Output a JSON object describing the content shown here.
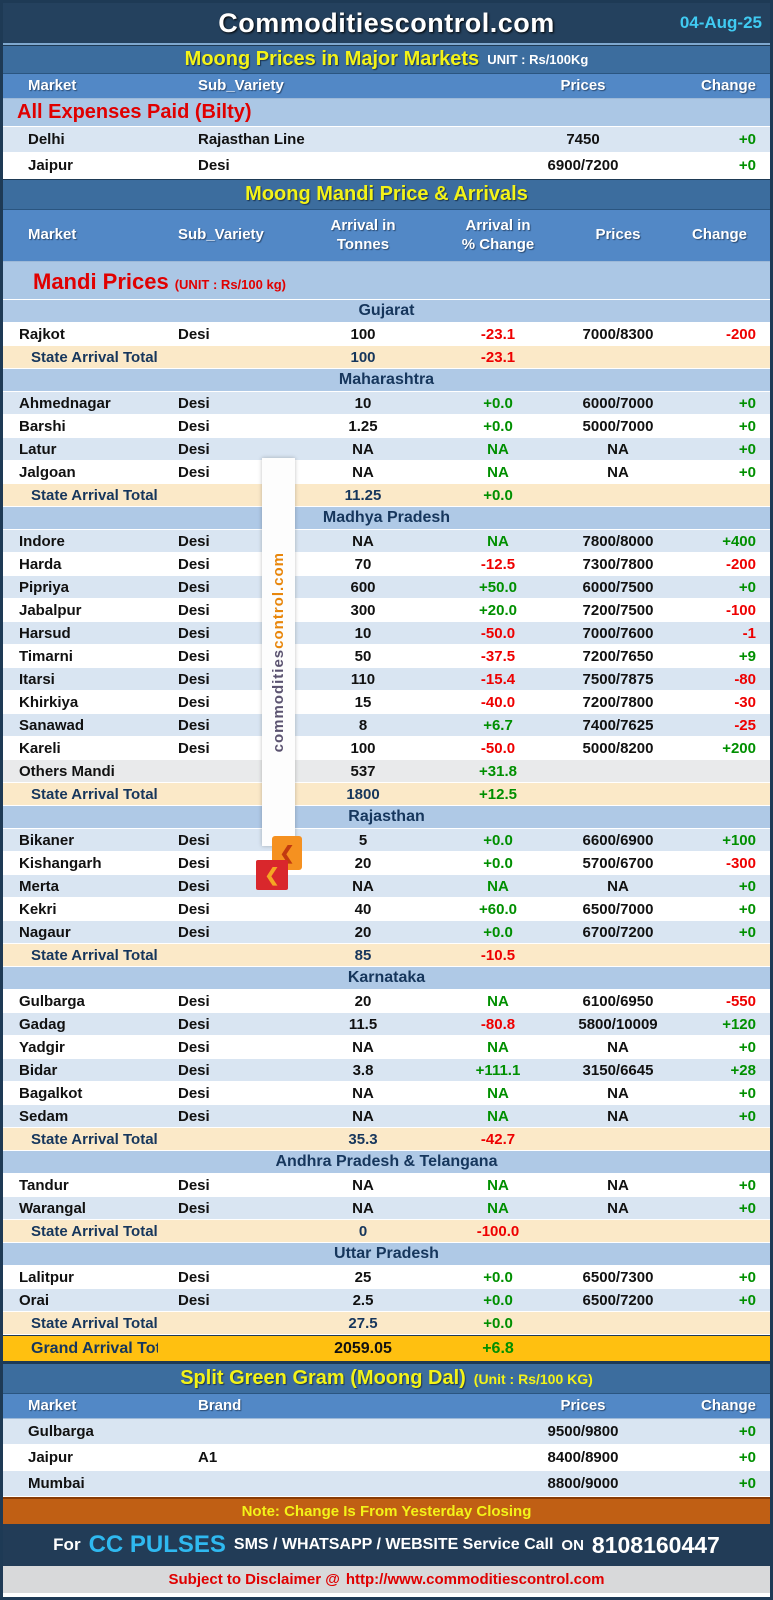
{
  "header": {
    "title": "Commoditiescontrol.com",
    "date": "04-Aug-25"
  },
  "colors": {
    "accent_navy": "#24415E",
    "band_blue": "#3C6D9E",
    "header_blue": "#5288C6",
    "subheader_blue": "#ABC7E5",
    "row_blue": "#D9E5F2",
    "total_cream": "#FBE9C8",
    "grand_gold": "#FFC010",
    "note_brown": "#C05F14",
    "positive_green": "#008F00",
    "negative_red": "#EE0000",
    "date_cyan": "#40CBF2",
    "cc_cyan": "#2FB9F0"
  },
  "major_markets": {
    "title": "Moong Prices in Major Markets",
    "unit": "UNIT : Rs/100Kg",
    "columns": [
      "Market",
      "Sub_Variety",
      "Prices",
      "Change"
    ],
    "group_label": "All Expenses Paid (Bilty)",
    "rows": [
      {
        "market": "Delhi",
        "sub": "Rajasthan Line",
        "prices": "7450",
        "change": "+0"
      },
      {
        "market": "Jaipur",
        "sub": "Desi",
        "prices": "6900/7200",
        "change": "+0"
      }
    ]
  },
  "mandi": {
    "title": "Moong Mandi Price & Arrivals",
    "columns": [
      {
        "l1": "Market"
      },
      {
        "l1": "Sub_Variety"
      },
      {
        "l1": "Arrival in",
        "l2": "Tonnes"
      },
      {
        "l1": "Arrival  in",
        "l2": "% Change"
      },
      {
        "l1": "Prices"
      },
      {
        "l1": "Change"
      }
    ],
    "label": "Mandi Prices",
    "label_unit": "(UNIT : Rs/100 kg)",
    "total_label": "State Arrival Total",
    "states": [
      {
        "name": "Gujarat",
        "rows": [
          [
            "Rajkot",
            "Desi",
            "100",
            "-23.1",
            "7000/8300",
            "-200"
          ]
        ],
        "total": {
          "arrival": "100",
          "pct": "-23.1"
        }
      },
      {
        "name": "Maharashtra",
        "rows": [
          [
            "Ahmednagar",
            "Desi",
            "10",
            "+0.0",
            "6000/7000",
            "+0"
          ],
          [
            "Barshi",
            "Desi",
            "1.25",
            "+0.0",
            "5000/7000",
            "+0"
          ],
          [
            "Latur",
            "Desi",
            "NA",
            "NA",
            "NA",
            "+0"
          ],
          [
            "Jalgoan",
            "Desi",
            "NA",
            "NA",
            "NA",
            "+0"
          ]
        ],
        "total": {
          "arrival": "11.25",
          "pct": "+0.0"
        }
      },
      {
        "name": "Madhya Pradesh",
        "rows": [
          [
            "Indore",
            "Desi",
            "NA",
            "NA",
            "7800/8000",
            "+400"
          ],
          [
            "Harda",
            "Desi",
            "70",
            "-12.5",
            "7300/7800",
            "-200"
          ],
          [
            "Pipriya",
            "Desi",
            "600",
            "+50.0",
            "6000/7500",
            "+0"
          ],
          [
            "Jabalpur",
            "Desi",
            "300",
            "+20.0",
            "7200/7500",
            "-100"
          ],
          [
            "Harsud",
            "Desi",
            "10",
            "-50.0",
            "7000/7600",
            "-1"
          ],
          [
            "Timarni",
            "Desi",
            "50",
            "-37.5",
            "7200/7650",
            "+9"
          ],
          [
            "Itarsi",
            "Desi",
            "110",
            "-15.4",
            "7500/7875",
            "-80"
          ],
          [
            "Khirkiya",
            "Desi",
            "15",
            "-40.0",
            "7200/7800",
            "-30"
          ],
          [
            "Sanawad",
            "Desi",
            "8",
            "+6.7",
            "7400/7625",
            "-25"
          ],
          [
            "Kareli",
            "Desi",
            "100",
            "-50.0",
            "5000/8200",
            "+200"
          ]
        ],
        "others": {
          "label": "Others Mandi",
          "arrival": "537",
          "pct": "+31.8"
        },
        "total": {
          "arrival": "1800",
          "pct": "+12.5"
        }
      },
      {
        "name": "Rajasthan",
        "rows": [
          [
            "Bikaner",
            "Desi",
            "5",
            "+0.0",
            "6600/6900",
            "+100"
          ],
          [
            "Kishangarh",
            "Desi",
            "20",
            "+0.0",
            "5700/6700",
            "-300"
          ],
          [
            "Merta",
            "Desi",
            "NA",
            "NA",
            "NA",
            "+0"
          ],
          [
            "Kekri",
            "Desi",
            "40",
            "+60.0",
            "6500/7000",
            "+0"
          ],
          [
            "Nagaur",
            "Desi",
            "20",
            "+0.0",
            "6700/7200",
            "+0"
          ]
        ],
        "total": {
          "arrival": "85",
          "pct": "-10.5"
        }
      },
      {
        "name": "Karnataka",
        "rows": [
          [
            "Gulbarga",
            "Desi",
            "20",
            "NA",
            "6100/6950",
            "-550"
          ],
          [
            "Gadag",
            "Desi",
            "11.5",
            "-80.8",
            "5800/10009",
            "+120"
          ],
          [
            "Yadgir",
            "Desi",
            "NA",
            "NA",
            "NA",
            "+0"
          ],
          [
            "Bidar",
            "Desi",
            "3.8",
            "+111.1",
            "3150/6645",
            "+28"
          ],
          [
            "Bagalkot",
            "Desi",
            "NA",
            "NA",
            "NA",
            "+0"
          ],
          [
            "Sedam",
            "Desi",
            "NA",
            "NA",
            "NA",
            "+0"
          ]
        ],
        "total": {
          "arrival": "35.3",
          "pct": "-42.7"
        }
      },
      {
        "name": "Andhra Pradesh & Telangana",
        "rows": [
          [
            "Tandur",
            "Desi",
            "NA",
            "NA",
            "NA",
            "+0"
          ],
          [
            "Warangal",
            "Desi",
            "NA",
            "NA",
            "NA",
            "+0"
          ]
        ],
        "total": {
          "arrival": "0",
          "pct": "-100.0"
        }
      },
      {
        "name": "Uttar Pradesh",
        "rows": [
          [
            "Lalitpur",
            "Desi",
            "25",
            "+0.0",
            "6500/7300",
            "+0"
          ],
          [
            "Orai",
            "Desi",
            "2.5",
            "+0.0",
            "6500/7200",
            "+0"
          ]
        ],
        "total": {
          "arrival": "27.5",
          "pct": "+0.0"
        }
      }
    ],
    "grand_total": {
      "label": "Grand Arrival Total",
      "arrival": "2059.05",
      "pct": "+6.8"
    }
  },
  "split_gram": {
    "title": "Split Green Gram (Moong Dal)",
    "unit": "(Unit : Rs/100 KG)",
    "columns": [
      "Market",
      "Brand",
      "Prices",
      "Change"
    ],
    "rows": [
      {
        "market": "Gulbarga",
        "brand": "",
        "prices": "9500/9800",
        "change": "+0"
      },
      {
        "market": "Jaipur",
        "brand": "A1",
        "prices": "8400/8900",
        "change": "+0"
      },
      {
        "market": "Mumbai",
        "brand": "",
        "prices": "8800/9000",
        "change": "+0"
      }
    ]
  },
  "note": "Note: Change Is From Yesterday Closing",
  "footer": {
    "for": "For",
    "brand": "CC PULSES",
    "services": "SMS / WHATSAPP / WEBSITE Service Call",
    "on": "ON",
    "phone": "8108160447"
  },
  "disclaimer": {
    "text": "Subject to Disclaimer @",
    "url": "http://www.commoditiescontrol.com"
  },
  "watermark": {
    "part1": "commodities",
    "part2": "control.com"
  }
}
